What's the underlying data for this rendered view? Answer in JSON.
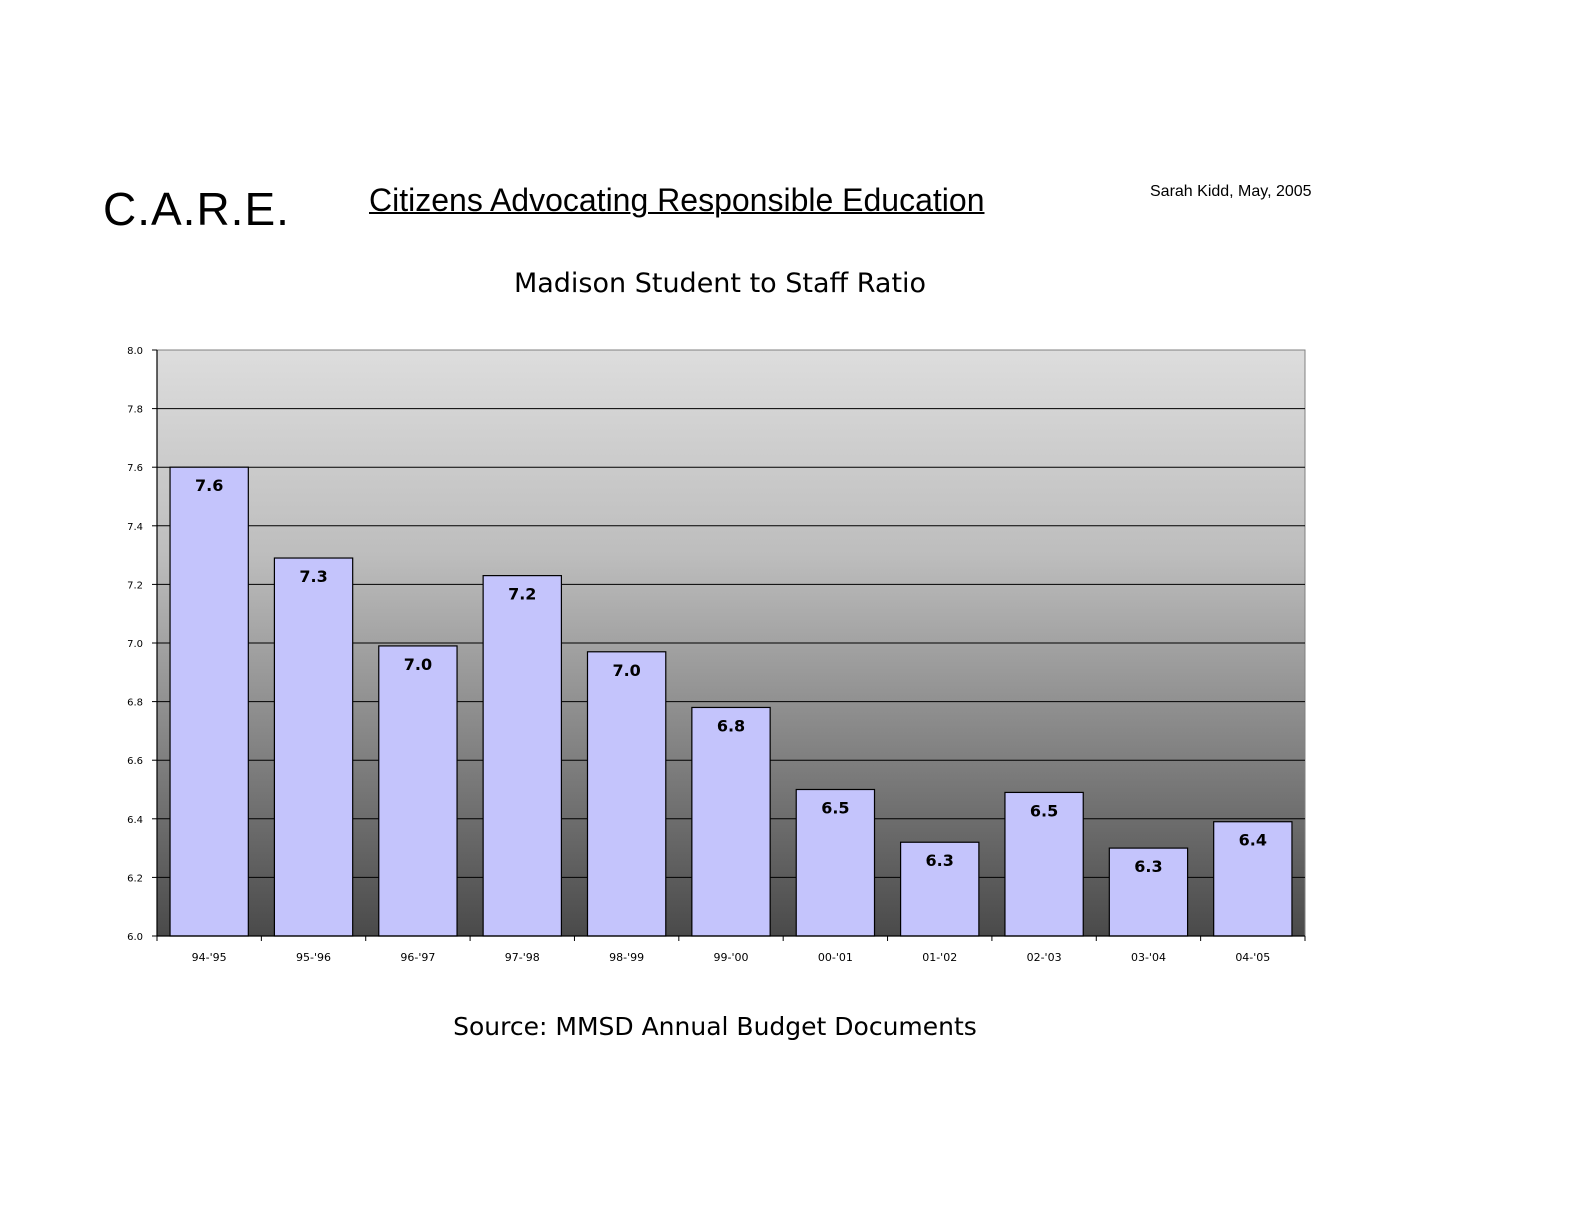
{
  "header": {
    "org_short": "C.A.R.E.",
    "org_full": "Citizens Advocating Responsible Education",
    "author": "Sarah Kidd, May, 2005"
  },
  "footer": {
    "source": "Source:  MMSD Annual Budget Documents"
  },
  "chart_data": {
    "type": "bar",
    "title": "Madison Student to Staff Ratio",
    "xlabel": "",
    "ylabel": "",
    "ylim": [
      6.0,
      8.0
    ],
    "yticks": [
      "6.0",
      "6.2",
      "6.4",
      "6.6",
      "6.8",
      "7.0",
      "7.2",
      "7.4",
      "7.6",
      "7.8",
      "8.0"
    ],
    "categories": [
      "94-'95",
      "95-'96",
      "96-'97",
      "97-'98",
      "98-'99",
      "99-'00",
      "00-'01",
      "01-'02",
      "02-'03",
      "03-'04",
      "04-'05"
    ],
    "values": [
      7.6,
      7.29,
      6.99,
      7.23,
      6.97,
      6.78,
      6.5,
      6.32,
      6.49,
      6.3,
      6.39
    ],
    "data_labels": [
      "7.6",
      "7.3",
      "7.0",
      "7.2",
      "7.0",
      "6.8",
      "6.5",
      "6.3",
      "6.5",
      "6.3",
      "6.4"
    ],
    "grid": true,
    "bar_color": "#c4c4fc",
    "plot_background": "gradient light gray to dark gray"
  }
}
